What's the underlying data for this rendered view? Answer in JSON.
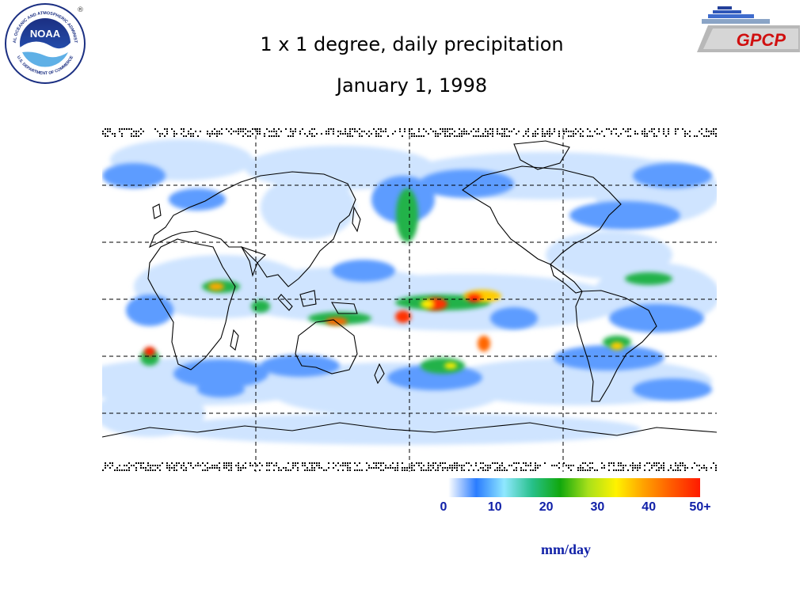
{
  "header": {
    "title": "1 x 1 degree, daily precipitation",
    "date": "January 1, 1998"
  },
  "logos": {
    "noaa": {
      "name": "NOAA",
      "ring_text": "NATIONAL OCEANIC AND ATMOSPHERIC ADMINISTRATION",
      "ring_text_bottom": "U.S. DEPARTMENT OF COMMERCE",
      "registered": "®"
    },
    "gpcp": {
      "name": "GPCP"
    }
  },
  "colorbar": {
    "ticks": [
      "0",
      "10",
      "20",
      "30",
      "40",
      "50+"
    ],
    "range": [
      0,
      50
    ],
    "stops": [
      "#ffffff",
      "#2a7cff",
      "#8fe8ff",
      "#27c08a",
      "#11a80d",
      "#a8e01a",
      "#fff200",
      "#ffa000",
      "#ff5a00",
      "#ff1a00"
    ],
    "units": "mm/day"
  },
  "map": {
    "projection": "equirectangular",
    "gridlines": "dashed",
    "colors": {
      "coast": "#000000",
      "grid": "#000000",
      "missing_data": "#000000"
    }
  }
}
